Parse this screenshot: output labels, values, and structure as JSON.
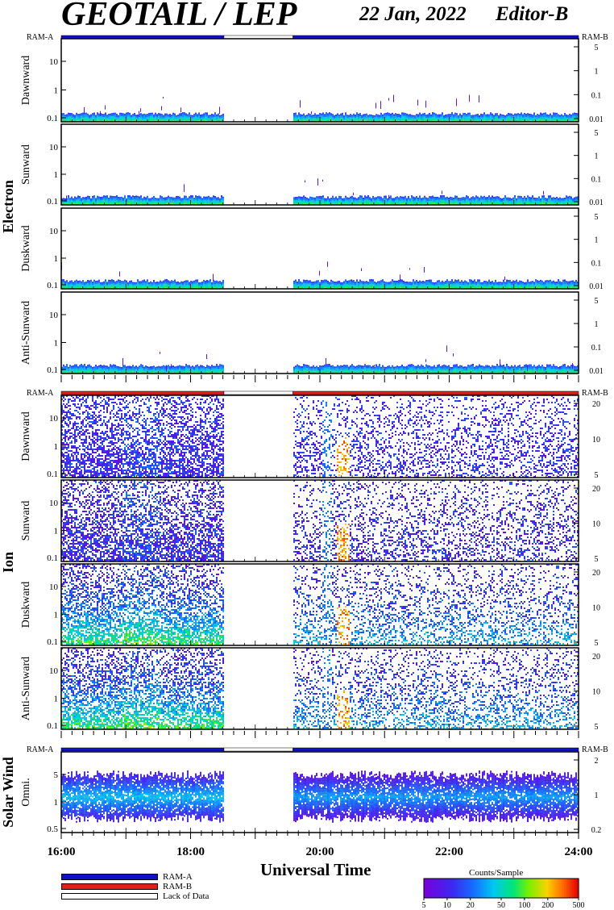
{
  "header": {
    "title": "GEOTAIL / LEP",
    "date": "22 Jan, 2022",
    "editor": "Editor-B"
  },
  "colors": {
    "ram_a": "#1010c8",
    "ram_b": "#e02020",
    "lack": "#ffffff"
  },
  "chart_data": {
    "type": "heatmap",
    "x_range": [
      "16:00",
      "24:00"
    ],
    "xlabel": "Universal Time",
    "x_ticks": [
      "16:00",
      "18:00",
      "20:00",
      "22:00",
      "24:00"
    ],
    "data_gap": [
      "18:31",
      "19:35"
    ],
    "groups": [
      {
        "name": "Electron",
        "ram_bar": "RAM-A",
        "ram_bar_left": "RAM-A",
        "ram_bar_right": "RAM-B",
        "panels": [
          {
            "name": "Dawnward",
            "left_ticks": [
              "10",
              "1",
              "0.1"
            ],
            "right_ticks": [
              "5",
              "1",
              "0.1",
              "0.01"
            ]
          },
          {
            "name": "Sunward",
            "left_ticks": [
              "10",
              "1",
              "0.1"
            ],
            "right_ticks": [
              "5",
              "1",
              "0.1",
              "0.01"
            ]
          },
          {
            "name": "Duskward",
            "left_ticks": [
              "10",
              "1",
              "0.1"
            ],
            "right_ticks": [
              "5",
              "1",
              "0.1",
              "0.01"
            ]
          },
          {
            "name": "Anti-Sunward",
            "left_ticks": [
              "10",
              "1",
              "0.1"
            ],
            "right_ticks": [
              "5",
              "1",
              "0.1",
              "0.01"
            ]
          }
        ]
      },
      {
        "name": "Ion",
        "ram_bar": "RAM-B",
        "ram_bar_left": "RAM-A",
        "ram_bar_right": "RAM-B",
        "panels": [
          {
            "name": "Dawnward",
            "left_ticks": [
              "10",
              "1",
              "0.1"
            ],
            "right_ticks": [
              "20",
              "10",
              "5"
            ]
          },
          {
            "name": "Sunward",
            "left_ticks": [
              "10",
              "1",
              "0.1"
            ],
            "right_ticks": [
              "20",
              "10",
              "5"
            ]
          },
          {
            "name": "Duskward",
            "left_ticks": [
              "10",
              "1",
              "0.1"
            ],
            "right_ticks": [
              "20",
              "10",
              "5"
            ]
          },
          {
            "name": "Anti-Sunward",
            "left_ticks": [
              "10",
              "1",
              "0.1"
            ],
            "right_ticks": [
              "20",
              "10",
              "5"
            ]
          }
        ]
      },
      {
        "name": "Solar Wind",
        "ram_bar": "RAM-A",
        "ram_bar_left": "RAM-A",
        "ram_bar_right": "RAM-B",
        "panels": [
          {
            "name": "Omni.",
            "left_ticks": [
              "5",
              "1",
              "0.5"
            ],
            "right_ticks": [
              "2",
              "1",
              "0.2"
            ]
          }
        ]
      }
    ],
    "colorbar": {
      "title": "Counts/Sample",
      "ticks": [
        "5",
        "10",
        "20",
        "50",
        "100",
        "200",
        "500"
      ],
      "range": [
        5,
        500
      ],
      "scale": "log"
    },
    "legend": [
      {
        "label": "RAM-A",
        "color": "#1010c8"
      },
      {
        "label": "RAM-B",
        "color": "#e02020"
      },
      {
        "label": "Lack of Data",
        "color": "#ffffff"
      }
    ]
  }
}
